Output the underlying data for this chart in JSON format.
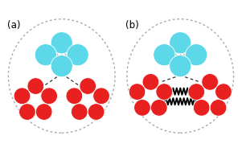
{
  "cyan_color": "#5DD8E8",
  "red_color": "#E82020",
  "spring_color": "#AAAAAA",
  "dashed_color": "#333333",
  "zigzag_color": "#000000",
  "bg_color": "#FFFFFF",
  "ellipse_color": "#AAAAAA",
  "panel_a_label": "(a)",
  "panel_b_label": "(b)",
  "figsize": [
    3.01,
    1.89
  ],
  "dpi": 100
}
